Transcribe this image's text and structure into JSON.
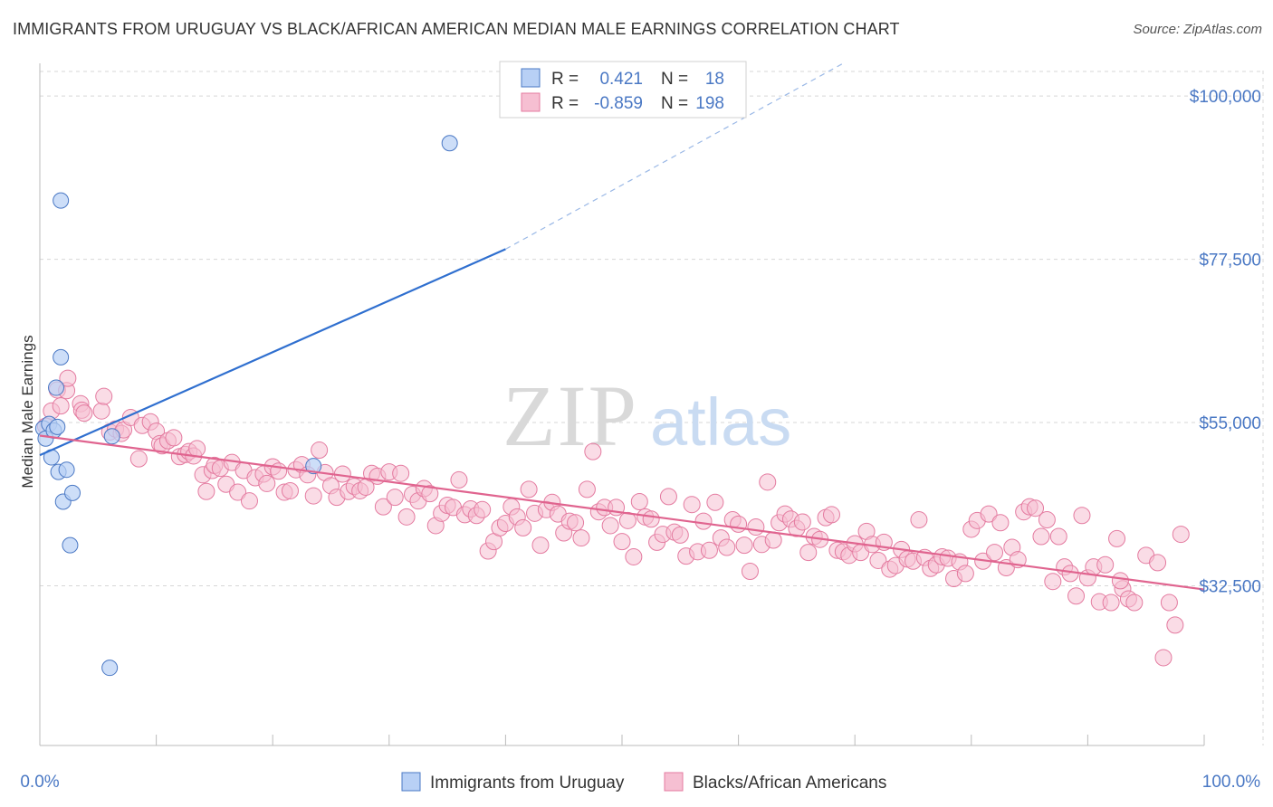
{
  "header": {
    "title": "IMMIGRANTS FROM URUGUAY VS BLACK/AFRICAN AMERICAN MEDIAN MALE EARNINGS CORRELATION CHART",
    "source": "Source: ZipAtlas.com"
  },
  "watermark": {
    "zip": "ZIP",
    "atlas": "atlas"
  },
  "colors": {
    "blue": "#4a78c4",
    "blue_fill": "#b8d0f5",
    "blue_line": "#2f6fcf",
    "pink_fill": "#f6bfd2",
    "pink_stroke": "#e47ba0",
    "pink_line": "#e0648f",
    "grid": "#d7d7d7"
  },
  "legend": {
    "rows": [
      {
        "r_label": "R =",
        "r_value": "0.421",
        "n_label": "N =",
        "n_value": "18"
      },
      {
        "r_label": "R =",
        "r_value": "-0.859",
        "n_label": "N =",
        "n_value": "198"
      }
    ]
  },
  "bottom_legend": [
    "Immigrants from Uruguay",
    "Blacks/African Americans"
  ],
  "chart_data": {
    "type": "scatter",
    "title": "IMMIGRANTS FROM URUGUAY VS BLACK/AFRICAN AMERICAN MEDIAN MALE EARNINGS CORRELATION CHART",
    "xlabel": "",
    "ylabel": "Median Male Earnings",
    "xlim": [
      0,
      100
    ],
    "ylim": [
      10500,
      104500
    ],
    "x_tick_labels": [
      "0.0%",
      "100.0%"
    ],
    "y_ticks": [
      32500,
      55000,
      77500,
      100000
    ],
    "y_tick_labels": [
      "$32,500",
      "$55,000",
      "$77,500",
      "$100,000"
    ],
    "grid": true,
    "legend_position": "top-center",
    "series": [
      {
        "name": "Immigrants from Uruguay",
        "r": 0.421,
        "n": 18,
        "trend": {
          "x0": 0,
          "y0": 50500,
          "x1": 40,
          "y1": 78900,
          "dash_x1": 69,
          "dash_y1": 104500
        },
        "points": [
          [
            0.3,
            54200
          ],
          [
            0.5,
            52800
          ],
          [
            0.8,
            54800
          ],
          [
            1.0,
            50200
          ],
          [
            1.2,
            53900
          ],
          [
            1.4,
            59800
          ],
          [
            1.5,
            54400
          ],
          [
            1.8,
            64000
          ],
          [
            1.6,
            48200
          ],
          [
            2.0,
            44100
          ],
          [
            2.3,
            48500
          ],
          [
            2.8,
            45300
          ],
          [
            2.6,
            38100
          ],
          [
            6.2,
            53100
          ],
          [
            6.0,
            21200
          ],
          [
            23.5,
            49000
          ],
          [
            35.2,
            93500
          ],
          [
            1.8,
            85600
          ]
        ]
      },
      {
        "name": "Blacks/African Americans",
        "r": -0.859,
        "n": 198,
        "trend": {
          "x0": 0,
          "y0": 53200,
          "x1": 100,
          "y1": 32000
        },
        "points": [
          [
            0.5,
            54500
          ],
          [
            1.0,
            56600
          ],
          [
            1.5,
            59500
          ],
          [
            1.8,
            57300
          ],
          [
            2.3,
            59400
          ],
          [
            2.4,
            61100
          ],
          [
            3.5,
            57600
          ],
          [
            3.6,
            56700
          ],
          [
            3.8,
            56300
          ],
          [
            5.3,
            56600
          ],
          [
            5.5,
            58600
          ],
          [
            6.0,
            53700
          ],
          [
            6.5,
            54100
          ],
          [
            7.0,
            53500
          ],
          [
            7.2,
            54000
          ],
          [
            7.8,
            55700
          ],
          [
            8.5,
            50000
          ],
          [
            8.8,
            54600
          ],
          [
            9.5,
            55100
          ],
          [
            10.0,
            53800
          ],
          [
            10.3,
            52100
          ],
          [
            10.5,
            51800
          ],
          [
            11.0,
            52500
          ],
          [
            11.5,
            52900
          ],
          [
            12.0,
            50300
          ],
          [
            12.5,
            50600
          ],
          [
            12.8,
            51000
          ],
          [
            13.2,
            50400
          ],
          [
            13.5,
            51400
          ],
          [
            14.0,
            47800
          ],
          [
            14.3,
            45500
          ],
          [
            14.8,
            48400
          ],
          [
            15.0,
            49100
          ],
          [
            15.5,
            48700
          ],
          [
            16.0,
            46500
          ],
          [
            16.5,
            49500
          ],
          [
            17.0,
            45400
          ],
          [
            17.5,
            48400
          ],
          [
            18.0,
            44200
          ],
          [
            18.5,
            47400
          ],
          [
            19.2,
            47900
          ],
          [
            19.5,
            46600
          ],
          [
            20.0,
            48900
          ],
          [
            20.5,
            48300
          ],
          [
            21.0,
            45400
          ],
          [
            21.5,
            45600
          ],
          [
            22.0,
            48500
          ],
          [
            22.5,
            49200
          ],
          [
            23.0,
            47800
          ],
          [
            23.5,
            44900
          ],
          [
            24.0,
            51200
          ],
          [
            24.5,
            48100
          ],
          [
            25.0,
            46300
          ],
          [
            25.5,
            44700
          ],
          [
            26.0,
            47900
          ],
          [
            26.5,
            45500
          ],
          [
            27.0,
            46200
          ],
          [
            27.5,
            45600
          ],
          [
            28.0,
            46100
          ],
          [
            28.5,
            48000
          ],
          [
            29.0,
            47600
          ],
          [
            29.5,
            43400
          ],
          [
            30.0,
            48200
          ],
          [
            30.5,
            44700
          ],
          [
            31.0,
            48000
          ],
          [
            31.5,
            42000
          ],
          [
            32.0,
            45100
          ],
          [
            32.5,
            44200
          ],
          [
            33.0,
            45900
          ],
          [
            33.5,
            45200
          ],
          [
            34.0,
            40800
          ],
          [
            34.5,
            42500
          ],
          [
            35.0,
            43600
          ],
          [
            35.5,
            43300
          ],
          [
            36.0,
            47100
          ],
          [
            36.5,
            42300
          ],
          [
            37.0,
            43100
          ],
          [
            37.5,
            42200
          ],
          [
            38.0,
            43000
          ],
          [
            38.5,
            37300
          ],
          [
            39.0,
            38600
          ],
          [
            39.5,
            40500
          ],
          [
            40.0,
            41100
          ],
          [
            40.5,
            43400
          ],
          [
            41.0,
            42000
          ],
          [
            41.5,
            40500
          ],
          [
            42.0,
            45800
          ],
          [
            42.5,
            42500
          ],
          [
            43.0,
            38100
          ],
          [
            43.5,
            43000
          ],
          [
            44.0,
            44000
          ],
          [
            44.5,
            42400
          ],
          [
            45.0,
            39800
          ],
          [
            45.5,
            41400
          ],
          [
            46.0,
            41200
          ],
          [
            46.5,
            39100
          ],
          [
            47.0,
            45800
          ],
          [
            47.5,
            51000
          ],
          [
            48.0,
            42700
          ],
          [
            48.5,
            43300
          ],
          [
            49.0,
            40800
          ],
          [
            49.5,
            43300
          ],
          [
            50.0,
            38600
          ],
          [
            50.5,
            41500
          ],
          [
            51.0,
            36500
          ],
          [
            51.5,
            44100
          ],
          [
            52.0,
            42000
          ],
          [
            52.5,
            41700
          ],
          [
            53.0,
            38500
          ],
          [
            53.5,
            39600
          ],
          [
            54.0,
            44800
          ],
          [
            54.5,
            39900
          ],
          [
            55.0,
            39500
          ],
          [
            55.5,
            36600
          ],
          [
            56.0,
            43700
          ],
          [
            56.5,
            37200
          ],
          [
            57.0,
            41400
          ],
          [
            57.5,
            37400
          ],
          [
            58.0,
            44000
          ],
          [
            58.5,
            39100
          ],
          [
            59.0,
            37800
          ],
          [
            59.5,
            41600
          ],
          [
            60.0,
            41000
          ],
          [
            60.5,
            38100
          ],
          [
            61.0,
            34500
          ],
          [
            61.5,
            40600
          ],
          [
            62.0,
            38200
          ],
          [
            62.5,
            46800
          ],
          [
            63.0,
            38800
          ],
          [
            63.5,
            41200
          ],
          [
            64.0,
            42400
          ],
          [
            64.5,
            41700
          ],
          [
            65.0,
            40400
          ],
          [
            65.5,
            41300
          ],
          [
            66.0,
            37100
          ],
          [
            66.5,
            39300
          ],
          [
            67.0,
            38900
          ],
          [
            67.5,
            41900
          ],
          [
            68.0,
            42300
          ],
          [
            68.5,
            37400
          ],
          [
            69.0,
            37200
          ],
          [
            69.5,
            36700
          ],
          [
            70.0,
            38300
          ],
          [
            70.5,
            37100
          ],
          [
            71.0,
            40000
          ],
          [
            71.5,
            38200
          ],
          [
            72.0,
            36000
          ],
          [
            72.5,
            38500
          ],
          [
            73.0,
            34800
          ],
          [
            73.5,
            35300
          ],
          [
            74.0,
            37500
          ],
          [
            74.5,
            36200
          ],
          [
            75.0,
            35900
          ],
          [
            75.5,
            41600
          ],
          [
            76.0,
            36400
          ],
          [
            76.5,
            34900
          ],
          [
            77.0,
            35400
          ],
          [
            77.5,
            36500
          ],
          [
            78.0,
            36300
          ],
          [
            78.5,
            33500
          ],
          [
            79.0,
            35800
          ],
          [
            79.5,
            34200
          ],
          [
            80.0,
            40300
          ],
          [
            80.5,
            41500
          ],
          [
            81.0,
            35900
          ],
          [
            81.5,
            42400
          ],
          [
            82.0,
            37100
          ],
          [
            82.5,
            41200
          ],
          [
            83.0,
            35000
          ],
          [
            83.5,
            37800
          ],
          [
            84.0,
            36100
          ],
          [
            84.5,
            42700
          ],
          [
            85.0,
            43400
          ],
          [
            85.5,
            43200
          ],
          [
            86.0,
            39300
          ],
          [
            86.5,
            41600
          ],
          [
            87.0,
            33100
          ],
          [
            87.5,
            39300
          ],
          [
            88.0,
            35100
          ],
          [
            88.5,
            34200
          ],
          [
            89.0,
            31100
          ],
          [
            89.5,
            42200
          ],
          [
            90.0,
            33600
          ],
          [
            90.5,
            35100
          ],
          [
            91.0,
            30300
          ],
          [
            91.5,
            35400
          ],
          [
            92.0,
            30200
          ],
          [
            92.5,
            39000
          ],
          [
            93.0,
            32100
          ],
          [
            93.5,
            30700
          ],
          [
            94.0,
            30200
          ],
          [
            95.0,
            36700
          ],
          [
            96.0,
            35700
          ],
          [
            96.5,
            22600
          ],
          [
            97.0,
            30200
          ],
          [
            97.5,
            27100
          ],
          [
            98.0,
            39600
          ],
          [
            92.8,
            33200
          ]
        ]
      }
    ]
  }
}
